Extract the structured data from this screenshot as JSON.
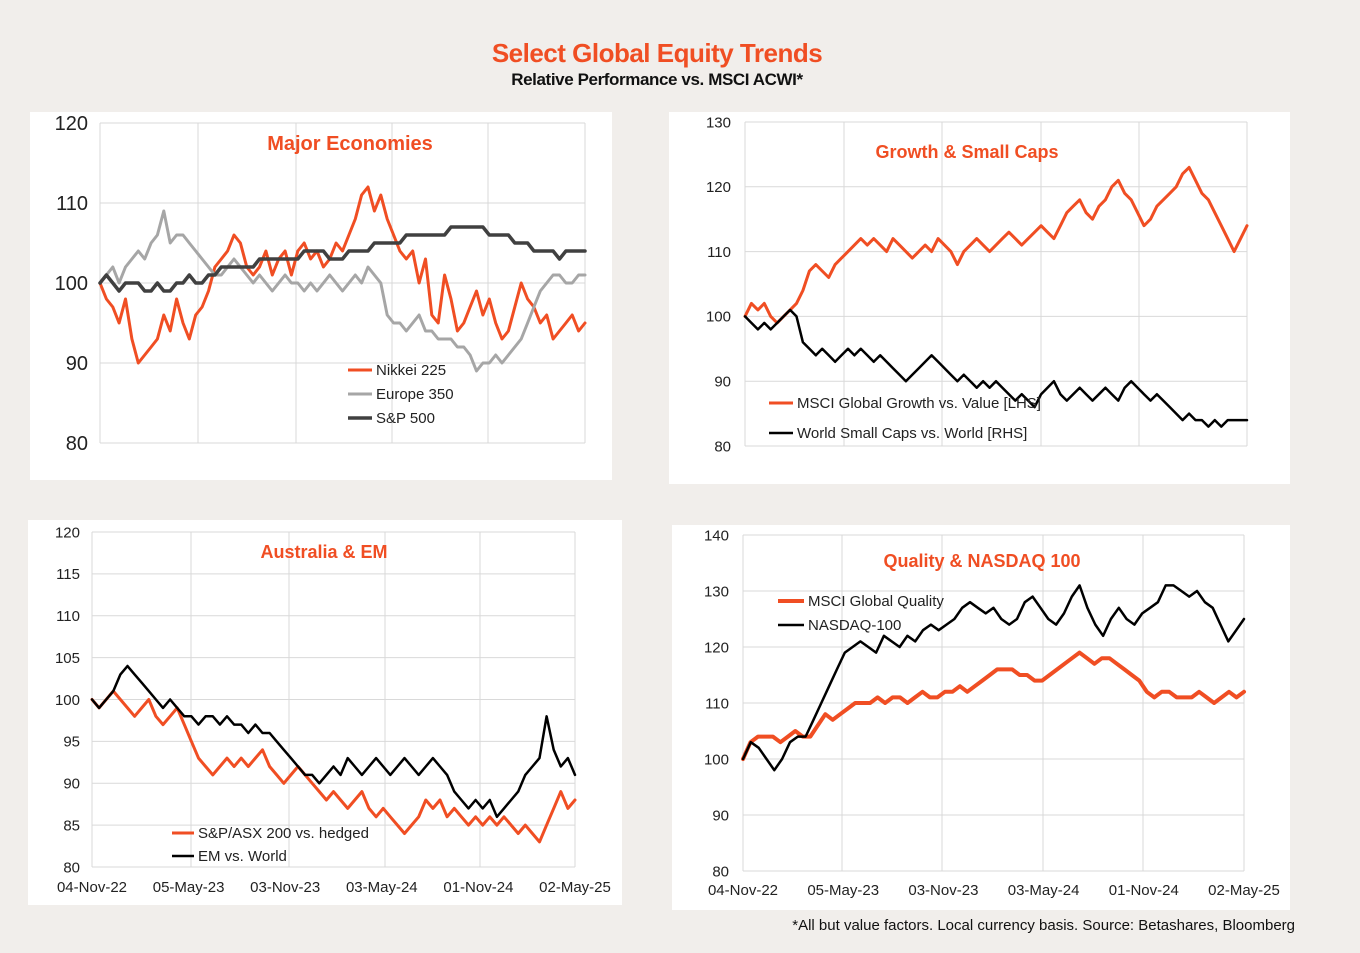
{
  "header": {
    "title": "Select Global Equity Trends",
    "subtitle": "Relative Performance vs. MSCI ACWI*"
  },
  "footnote": "*All but value factors. Local currency basis.  Source: Betashares, Bloomberg",
  "colors": {
    "orange": "#f04e23",
    "grey": "#a6a6a6",
    "darkgrey": "#404040",
    "black": "#000000"
  },
  "chart_data": [
    {
      "id": "major",
      "type": "line",
      "title": "Major  Economies",
      "ylim": [
        80,
        120
      ],
      "yticks": [
        80,
        90,
        100,
        110,
        120
      ],
      "xticks": [],
      "x_range": [
        "04-Nov-22",
        "02-May-25"
      ],
      "series": [
        {
          "name": "Nikkei 225",
          "color": "#f04e23",
          "width": 3,
          "values": [
            100,
            98,
            97,
            95,
            98,
            93,
            90,
            91,
            92,
            93,
            96,
            94,
            98,
            95,
            93,
            96,
            97,
            99,
            102,
            103,
            104,
            106,
            105,
            102,
            101,
            102,
            104,
            101,
            103,
            104,
            101,
            104,
            105,
            103,
            104,
            102,
            103,
            105,
            104,
            106,
            108,
            111,
            112,
            109,
            111,
            108,
            106,
            104,
            103,
            104,
            100,
            103,
            96,
            95,
            101,
            98,
            94,
            95,
            97,
            99,
            96,
            98,
            95,
            93,
            94,
            97,
            100,
            98,
            97,
            95,
            96,
            93,
            94,
            95,
            96,
            94,
            95
          ]
        },
        {
          "name": "Europe 350",
          "color": "#a6a6a6",
          "width": 3,
          "values": [
            100,
            101,
            102,
            100,
            102,
            103,
            104,
            103,
            105,
            106,
            109,
            105,
            106,
            106,
            105,
            104,
            103,
            102,
            101,
            101,
            102,
            103,
            102,
            101,
            100,
            101,
            100,
            99,
            100,
            101,
            100,
            100,
            99,
            100,
            99,
            100,
            101,
            100,
            99,
            100,
            101,
            100,
            102,
            101,
            100,
            96,
            95,
            95,
            94,
            95,
            96,
            94,
            94,
            93,
            93,
            93,
            92,
            92,
            91,
            89,
            90,
            90,
            91,
            90,
            91,
            92,
            93,
            95,
            97,
            99,
            100,
            101,
            101,
            100,
            100,
            101,
            101
          ]
        },
        {
          "name": "S&P 500",
          "color": "#404040",
          "width": 3.5,
          "values": [
            100,
            101,
            100,
            99,
            100,
            100,
            100,
            99,
            99,
            100,
            99,
            99,
            100,
            100,
            101,
            100,
            100,
            101,
            101,
            102,
            102,
            102,
            102,
            102,
            102,
            103,
            103,
            103,
            103,
            103,
            103,
            103,
            104,
            104,
            104,
            104,
            103,
            103,
            103,
            104,
            104,
            104,
            104,
            105,
            105,
            105,
            105,
            105,
            106,
            106,
            106,
            106,
            106,
            106,
            106,
            107,
            107,
            107,
            107,
            107,
            107,
            106,
            106,
            106,
            106,
            105,
            105,
            105,
            104,
            104,
            104,
            104,
            103,
            104,
            104,
            104,
            104
          ]
        }
      ]
    },
    {
      "id": "growth",
      "type": "line",
      "title": "Growth & Small Caps",
      "ylim": [
        80,
        130
      ],
      "yticks": [
        80,
        90,
        100,
        110,
        120,
        130
      ],
      "xticks": [],
      "x_range": [
        "04-Nov-22",
        "02-May-25"
      ],
      "series": [
        {
          "name": "MSCI Global Growth vs. Value [LHS]",
          "color": "#f04e23",
          "width": 3,
          "values": [
            100,
            102,
            101,
            102,
            100,
            99,
            100,
            101,
            102,
            104,
            107,
            108,
            107,
            106,
            108,
            109,
            110,
            111,
            112,
            111,
            112,
            111,
            110,
            112,
            111,
            110,
            109,
            110,
            111,
            110,
            112,
            111,
            110,
            108,
            110,
            111,
            112,
            111,
            110,
            111,
            112,
            113,
            112,
            111,
            112,
            113,
            114,
            113,
            112,
            114,
            116,
            117,
            118,
            116,
            115,
            117,
            118,
            120,
            121,
            119,
            118,
            116,
            114,
            115,
            117,
            118,
            119,
            120,
            122,
            123,
            121,
            119,
            118,
            116,
            114,
            112,
            110,
            112,
            114
          ]
        },
        {
          "name": "World Small Caps vs. World [RHS]",
          "color": "#000000",
          "width": 2.5,
          "values": [
            100,
            99,
            98,
            99,
            98,
            99,
            100,
            101,
            100,
            96,
            95,
            94,
            95,
            94,
            93,
            94,
            95,
            94,
            95,
            94,
            93,
            94,
            93,
            92,
            91,
            90,
            91,
            92,
            93,
            94,
            93,
            92,
            91,
            90,
            91,
            90,
            89,
            90,
            89,
            90,
            89,
            88,
            87,
            88,
            87,
            86,
            88,
            89,
            90,
            88,
            87,
            88,
            89,
            88,
            87,
            88,
            89,
            88,
            87,
            89,
            90,
            89,
            88,
            87,
            88,
            87,
            86,
            85,
            84,
            85,
            84,
            84,
            83,
            84,
            83,
            84,
            84,
            84,
            84
          ]
        }
      ]
    },
    {
      "id": "aus",
      "type": "line",
      "title": "Australia & EM",
      "ylim": [
        80,
        120
      ],
      "yticks": [
        80,
        85,
        90,
        95,
        100,
        105,
        110,
        115,
        120
      ],
      "xticks": [
        "04-Nov-22",
        "05-May-23",
        "03-Nov-23",
        "03-May-24",
        "01-Nov-24",
        "02-May-25"
      ],
      "x_range": [
        "04-Nov-22",
        "02-May-25"
      ],
      "series": [
        {
          "name": "S&P/ASX 200 vs. hedged",
          "color": "#f04e23",
          "width": 3,
          "values": [
            100,
            99,
            100,
            101,
            100,
            99,
            98,
            99,
            100,
            98,
            97,
            98,
            99,
            97,
            95,
            93,
            92,
            91,
            92,
            93,
            92,
            93,
            92,
            93,
            94,
            92,
            91,
            90,
            91,
            92,
            91,
            90,
            89,
            88,
            89,
            88,
            87,
            88,
            89,
            87,
            86,
            87,
            86,
            85,
            84,
            85,
            86,
            88,
            87,
            88,
            86,
            87,
            86,
            85,
            86,
            85,
            86,
            85,
            86,
            85,
            84,
            85,
            84,
            83,
            85,
            87,
            89,
            87,
            88
          ]
        },
        {
          "name": "EM vs. World",
          "color": "#000000",
          "width": 2.5,
          "values": [
            100,
            99,
            100,
            101,
            103,
            104,
            103,
            102,
            101,
            100,
            99,
            100,
            99,
            98,
            98,
            97,
            98,
            98,
            97,
            98,
            97,
            97,
            96,
            97,
            96,
            96,
            95,
            94,
            93,
            92,
            91,
            91,
            90,
            91,
            92,
            91,
            93,
            92,
            91,
            92,
            93,
            92,
            91,
            92,
            93,
            92,
            91,
            92,
            93,
            92,
            91,
            89,
            88,
            87,
            88,
            87,
            88,
            86,
            87,
            88,
            89,
            91,
            92,
            93,
            98,
            94,
            92,
            93,
            91
          ]
        }
      ]
    },
    {
      "id": "quality",
      "type": "line",
      "title": "Quality & NASDAQ 100",
      "ylim": [
        80,
        140
      ],
      "yticks": [
        80,
        90,
        100,
        110,
        120,
        130,
        140
      ],
      "xticks": [
        "04-Nov-22",
        "05-May-23",
        "03-Nov-23",
        "03-May-24",
        "01-Nov-24",
        "02-May-25"
      ],
      "x_range": [
        "04-Nov-22",
        "02-May-25"
      ],
      "series": [
        {
          "name": "MSCI Global Quality",
          "color": "#f04e23",
          "width": 4,
          "values": [
            100,
            103,
            104,
            104,
            104,
            103,
            104,
            105,
            104,
            104,
            106,
            108,
            107,
            108,
            109,
            110,
            110,
            110,
            111,
            110,
            111,
            111,
            110,
            111,
            112,
            111,
            111,
            112,
            112,
            113,
            112,
            113,
            114,
            115,
            116,
            116,
            116,
            115,
            115,
            114,
            114,
            115,
            116,
            117,
            118,
            119,
            118,
            117,
            118,
            118,
            117,
            116,
            115,
            114,
            112,
            111,
            112,
            112,
            111,
            111,
            111,
            112,
            111,
            110,
            111,
            112,
            111,
            112
          ]
        },
        {
          "name": "NASDAQ-100",
          "color": "#000000",
          "width": 2.5,
          "values": [
            100,
            103,
            102,
            100,
            98,
            100,
            103,
            104,
            104,
            107,
            110,
            113,
            116,
            119,
            120,
            121,
            120,
            119,
            122,
            121,
            120,
            122,
            121,
            123,
            124,
            123,
            124,
            125,
            127,
            128,
            127,
            126,
            127,
            125,
            124,
            125,
            128,
            129,
            127,
            125,
            124,
            126,
            129,
            131,
            127,
            124,
            122,
            125,
            127,
            125,
            124,
            126,
            127,
            128,
            131,
            131,
            130,
            129,
            130,
            128,
            127,
            124,
            121,
            123,
            125
          ]
        }
      ]
    }
  ]
}
